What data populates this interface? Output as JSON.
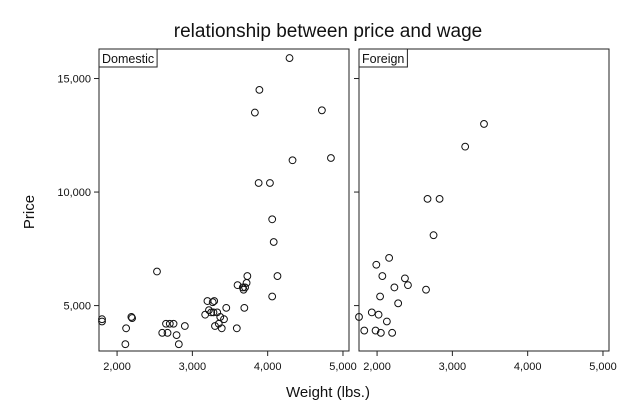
{
  "chart_data": {
    "type": "scatter",
    "title": "relationship between price and wage",
    "xlabel": "Weight (lbs.)",
    "ylabel": "Price",
    "xlim": [
      1760,
      5080
    ],
    "ylim": [
      3000,
      16300
    ],
    "x_ticks": [
      {
        "value": 2000,
        "label": "2,000"
      },
      {
        "value": 3000,
        "label": "3,000"
      },
      {
        "value": 4000,
        "label": "4,000"
      },
      {
        "value": 5000,
        "label": "5,000"
      }
    ],
    "y_ticks": [
      {
        "value": 5000,
        "label": "5,000"
      },
      {
        "value": 10000,
        "label": "10,000"
      },
      {
        "value": 15000,
        "label": "15,000"
      }
    ],
    "grid": false,
    "legend": "none",
    "panels": [
      {
        "name": "Domestic",
        "points": [
          [
            1800,
            4400
          ],
          [
            1800,
            4300
          ],
          [
            2110,
            3300
          ],
          [
            2120,
            4000
          ],
          [
            2190,
            4500
          ],
          [
            2200,
            4450
          ],
          [
            2530,
            6500
          ],
          [
            2600,
            3800
          ],
          [
            2650,
            4200
          ],
          [
            2670,
            3800
          ],
          [
            2700,
            4200
          ],
          [
            2750,
            4200
          ],
          [
            2790,
            3700
          ],
          [
            2820,
            3300
          ],
          [
            2900,
            4100
          ],
          [
            3170,
            4600
          ],
          [
            3200,
            5200
          ],
          [
            3220,
            4800
          ],
          [
            3250,
            4700
          ],
          [
            3270,
            5150
          ],
          [
            3280,
            4700
          ],
          [
            3290,
            5200
          ],
          [
            3300,
            4100
          ],
          [
            3330,
            4700
          ],
          [
            3350,
            4200
          ],
          [
            3370,
            4500
          ],
          [
            3390,
            4000
          ],
          [
            3420,
            4400
          ],
          [
            3450,
            4900
          ],
          [
            3590,
            4000
          ],
          [
            3600,
            5900
          ],
          [
            3670,
            5800
          ],
          [
            3680,
            5700
          ],
          [
            3690,
            4900
          ],
          [
            3700,
            5800
          ],
          [
            3720,
            6000
          ],
          [
            3730,
            6300
          ],
          [
            3830,
            13500
          ],
          [
            3880,
            10400
          ],
          [
            3890,
            14500
          ],
          [
            4030,
            10400
          ],
          [
            4060,
            5400
          ],
          [
            4060,
            8800
          ],
          [
            4080,
            7800
          ],
          [
            4130,
            6300
          ],
          [
            4290,
            15900
          ],
          [
            4330,
            11400
          ],
          [
            4720,
            13600
          ],
          [
            4840,
            11500
          ]
        ]
      },
      {
        "name": "Foreign",
        "points": [
          [
            1760,
            4500
          ],
          [
            1830,
            3900
          ],
          [
            1930,
            4700
          ],
          [
            1980,
            3900
          ],
          [
            1990,
            6800
          ],
          [
            2020,
            4600
          ],
          [
            2040,
            5400
          ],
          [
            2050,
            3800
          ],
          [
            2070,
            6300
          ],
          [
            2130,
            4300
          ],
          [
            2160,
            7100
          ],
          [
            2200,
            3800
          ],
          [
            2230,
            5800
          ],
          [
            2280,
            5100
          ],
          [
            2370,
            6200
          ],
          [
            2410,
            5900
          ],
          [
            2650,
            5700
          ],
          [
            2670,
            9700
          ],
          [
            2750,
            8100
          ],
          [
            2830,
            9700
          ],
          [
            3170,
            12000
          ],
          [
            3420,
            13000
          ]
        ]
      }
    ]
  }
}
